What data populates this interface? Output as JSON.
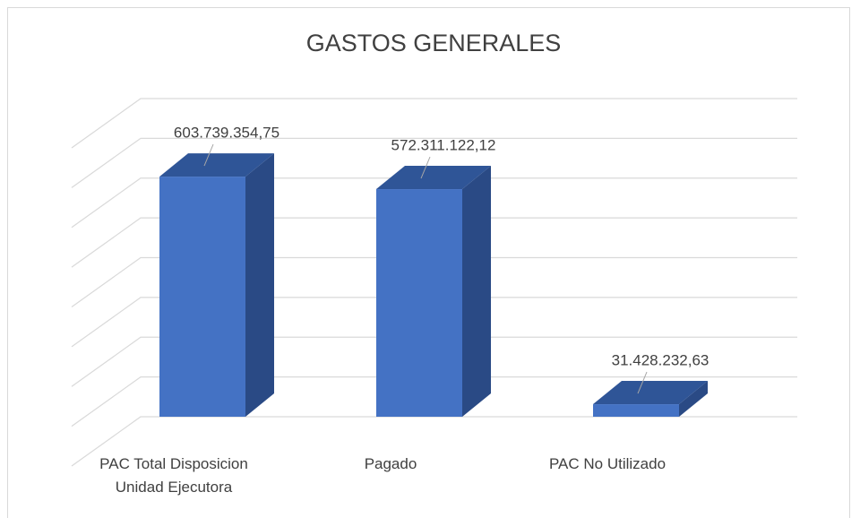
{
  "chart_data": {
    "type": "bar3d",
    "title": "GASTOS GENERALES",
    "categories": [
      "PAC Total Disposicion Unidad Ejecutora",
      "Pagado",
      "PAC No Utilizado"
    ],
    "values": [
      603739354.75,
      572311122.12,
      31428232.63
    ],
    "value_labels": [
      "603.739.354,75",
      "572.311.122,12",
      "31.428.232,63"
    ],
    "color": "#4472c4",
    "ylim": [
      0,
      800000000
    ],
    "yticks": [
      0,
      100000000,
      200000000,
      300000000,
      400000000,
      500000000,
      600000000,
      700000000,
      800000000
    ],
    "grid": true
  }
}
